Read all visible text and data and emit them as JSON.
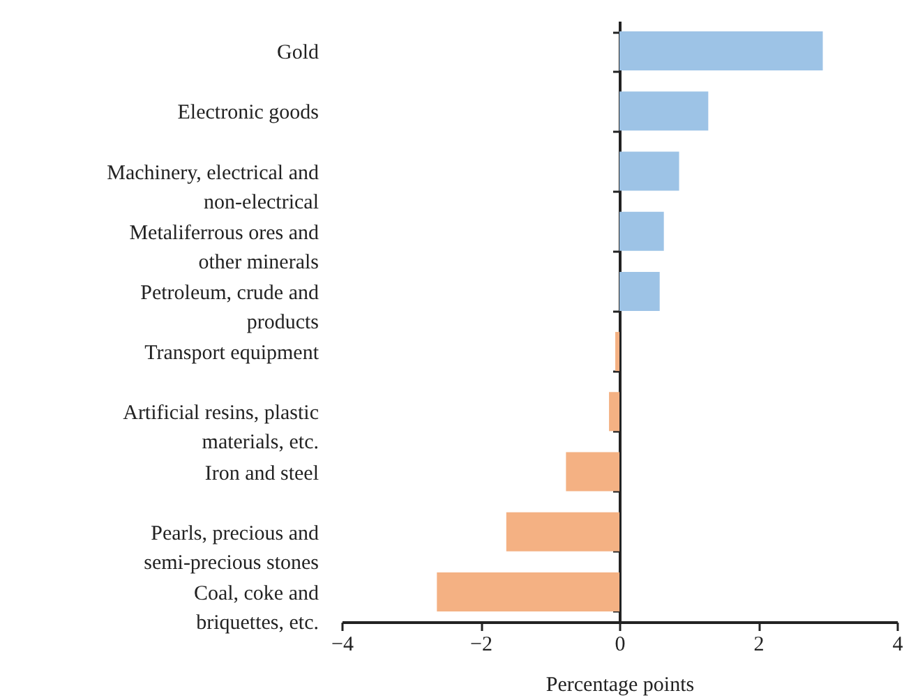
{
  "chart_data": {
    "type": "bar",
    "orientation": "horizontal",
    "xlabel": "Percentage points",
    "categories": [
      "Gold",
      "Electronic goods",
      "Machinery, electrical and\nnon-electrical",
      "Metaliferrous ores and\nother minerals",
      "Petroleum, crude and\nproducts",
      "Transport equipment",
      "Artificial resins, plastic\nmaterials, etc.",
      "Iron and steel",
      "Pearls, precious and\nsemi-precious stones",
      "Coal, coke and\nbriquettes, etc."
    ],
    "values": [
      2.93,
      1.28,
      0.86,
      0.64,
      0.58,
      -0.06,
      -0.15,
      -0.77,
      -1.63,
      -2.63
    ],
    "colors": [
      "#9dc3e6",
      "#9dc3e6",
      "#9dc3e6",
      "#9dc3e6",
      "#9dc3e6",
      "#f4b183",
      "#f4b183",
      "#f4b183",
      "#f4b183",
      "#f4b183"
    ],
    "xlim": [
      -4,
      4
    ],
    "xticks": [
      -4,
      -2,
      0,
      2,
      4
    ]
  }
}
